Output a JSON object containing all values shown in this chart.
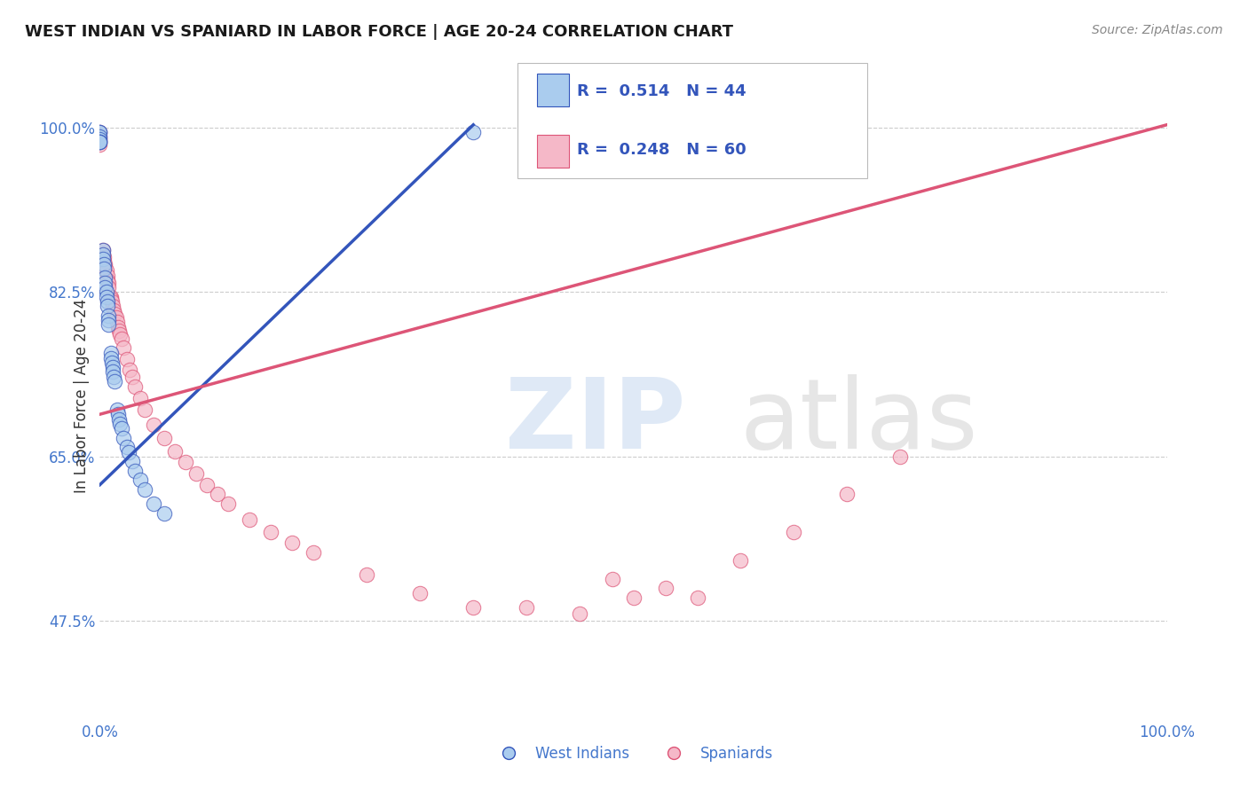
{
  "title": "WEST INDIAN VS SPANIARD IN LABOR FORCE | AGE 20-24 CORRELATION CHART",
  "source": "Source: ZipAtlas.com",
  "ylabel": "In Labor Force | Age 20-24",
  "xlabel": "",
  "xlim": [
    0.0,
    1.0
  ],
  "ylim": [
    0.37,
    1.06
  ],
  "background_color": "#ffffff",
  "grid_color": "#cccccc",
  "west_indian_color": "#aaccee",
  "spaniard_color": "#f5b8c8",
  "trend_blue": "#3355bb",
  "trend_pink": "#dd5577",
  "legend_r1": "R =  0.514",
  "legend_n1": "N = 44",
  "legend_r2": "R =  0.248",
  "legend_n2": "N = 60",
  "west_indian_x": [
    0.0,
    0.0,
    0.0,
    0.0,
    0.0,
    0.0,
    0.0,
    0.003,
    0.003,
    0.003,
    0.004,
    0.004,
    0.005,
    0.005,
    0.005,
    0.006,
    0.006,
    0.007,
    0.007,
    0.008,
    0.008,
    0.008,
    0.01,
    0.01,
    0.011,
    0.012,
    0.012,
    0.013,
    0.014,
    0.016,
    0.017,
    0.018,
    0.019,
    0.02,
    0.022,
    0.025,
    0.027,
    0.03,
    0.033,
    0.038,
    0.042,
    0.05,
    0.06,
    0.35
  ],
  "west_indian_y": [
    0.995,
    0.995,
    0.99,
    0.988,
    0.985,
    0.985,
    0.985,
    0.87,
    0.865,
    0.86,
    0.855,
    0.85,
    0.84,
    0.835,
    0.83,
    0.825,
    0.82,
    0.815,
    0.81,
    0.8,
    0.795,
    0.79,
    0.76,
    0.755,
    0.75,
    0.745,
    0.74,
    0.735,
    0.73,
    0.7,
    0.695,
    0.69,
    0.685,
    0.68,
    0.67,
    0.66,
    0.655,
    0.645,
    0.635,
    0.625,
    0.615,
    0.6,
    0.59,
    0.995
  ],
  "spaniard_x": [
    0.0,
    0.0,
    0.0,
    0.0,
    0.0,
    0.003,
    0.003,
    0.004,
    0.004,
    0.005,
    0.005,
    0.006,
    0.007,
    0.007,
    0.008,
    0.008,
    0.01,
    0.01,
    0.011,
    0.012,
    0.013,
    0.014,
    0.015,
    0.016,
    0.017,
    0.018,
    0.019,
    0.02,
    0.022,
    0.025,
    0.028,
    0.03,
    0.033,
    0.038,
    0.042,
    0.05,
    0.06,
    0.07,
    0.08,
    0.09,
    0.1,
    0.11,
    0.12,
    0.14,
    0.16,
    0.18,
    0.2,
    0.25,
    0.3,
    0.35,
    0.4,
    0.45,
    0.48,
    0.5,
    0.53,
    0.56,
    0.6,
    0.65,
    0.7,
    0.75
  ],
  "spaniard_y": [
    0.995,
    0.99,
    0.988,
    0.985,
    0.982,
    0.87,
    0.865,
    0.862,
    0.858,
    0.855,
    0.852,
    0.848,
    0.842,
    0.838,
    0.835,
    0.83,
    0.82,
    0.818,
    0.815,
    0.81,
    0.806,
    0.802,
    0.798,
    0.793,
    0.788,
    0.784,
    0.78,
    0.775,
    0.766,
    0.754,
    0.742,
    0.735,
    0.724,
    0.712,
    0.7,
    0.684,
    0.67,
    0.656,
    0.644,
    0.632,
    0.62,
    0.61,
    0.6,
    0.583,
    0.57,
    0.558,
    0.548,
    0.524,
    0.505,
    0.49,
    0.49,
    0.483,
    0.52,
    0.5,
    0.51,
    0.5,
    0.54,
    0.57,
    0.61,
    0.65
  ],
  "trend_wi_x0": 0.0,
  "trend_wi_x1": 0.35,
  "trend_wi_y0": 0.62,
  "trend_wi_y1": 1.003,
  "trend_sp_x0": 0.0,
  "trend_sp_x1": 1.0,
  "trend_sp_y0": 0.695,
  "trend_sp_y1": 1.003
}
